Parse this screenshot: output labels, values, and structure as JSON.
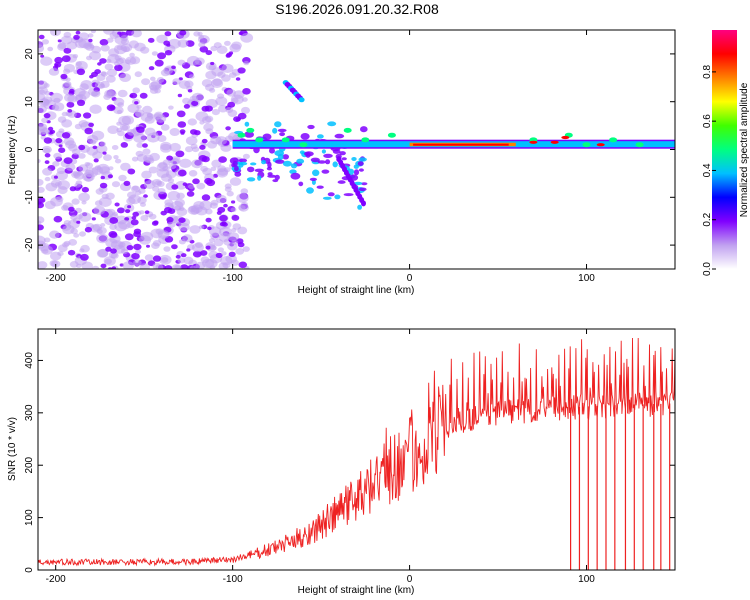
{
  "title": "S196.2026.091.20.32.R08",
  "chart_data": [
    {
      "type": "heatmap",
      "title": "S196.2026.091.20.32.R08",
      "xlabel": "Height of straight line (km)",
      "ylabel": "Frequency (Hz)",
      "xlim": [
        -210,
        150
      ],
      "ylim": [
        -25,
        25
      ],
      "xticks": [
        -200,
        -100,
        0,
        100
      ],
      "yticks": [
        -20,
        -10,
        0,
        10,
        20
      ],
      "colorbar": {
        "label": "Normalized spectral amplitude",
        "range": [
          0,
          0.97
        ],
        "ticks": [
          0,
          0.2,
          0.4,
          0.6,
          0.8
        ],
        "colormap": [
          "#ffffff",
          "#c0a0f0",
          "#8000ff",
          "#0000ff",
          "#00c0ff",
          "#00ff80",
          "#40ff00",
          "#ffff00",
          "#ff8000",
          "#ff0000",
          "#ff0080"
        ]
      },
      "features": [
        {
          "name": "broadband noise",
          "x_range": [
            -210,
            -100
          ],
          "freq_range": [
            -25,
            25
          ],
          "amplitude": 0.15
        },
        {
          "name": "carrier line",
          "x_range": [
            -100,
            150
          ],
          "freq_hz": 1,
          "amplitude_peak": 0.9
        },
        {
          "name": "upper sideband",
          "x_range": [
            -70,
            -60
          ],
          "freq_range": [
            10,
            14
          ],
          "amplitude": 0.3
        },
        {
          "name": "lower spread",
          "x_range": [
            -40,
            -25
          ],
          "freq_range": [
            -12,
            -2
          ],
          "amplitude": 0.2
        }
      ]
    },
    {
      "type": "line",
      "xlabel": "Height of straight line (km)",
      "ylabel": "SNR (10 * v/v)",
      "xlim": [
        -210,
        150
      ],
      "ylim": [
        0,
        460
      ],
      "xticks": [
        -200,
        -100,
        0,
        100
      ],
      "yticks": [
        0,
        100,
        200,
        300,
        400
      ],
      "series": [
        {
          "name": "SNR",
          "color": "#ee2222",
          "x": [
            -210,
            -180,
            -150,
            -120,
            -100,
            -90,
            -80,
            -70,
            -60,
            -50,
            -40,
            -30,
            -20,
            -10,
            0,
            10,
            20,
            30,
            40,
            50,
            60,
            70,
            80,
            90,
            100,
            110,
            120,
            130,
            140,
            150
          ],
          "y": [
            15,
            15,
            15,
            16,
            20,
            28,
            38,
            50,
            65,
            85,
            110,
            140,
            170,
            190,
            215,
            245,
            268,
            283,
            293,
            300,
            303,
            305,
            307,
            310,
            312,
            314,
            315,
            316,
            317,
            318
          ],
          "dropouts_x": [
            91,
            96,
            101,
            106,
            111,
            116,
            122,
            127,
            132,
            138,
            142,
            147
          ]
        }
      ]
    }
  ]
}
